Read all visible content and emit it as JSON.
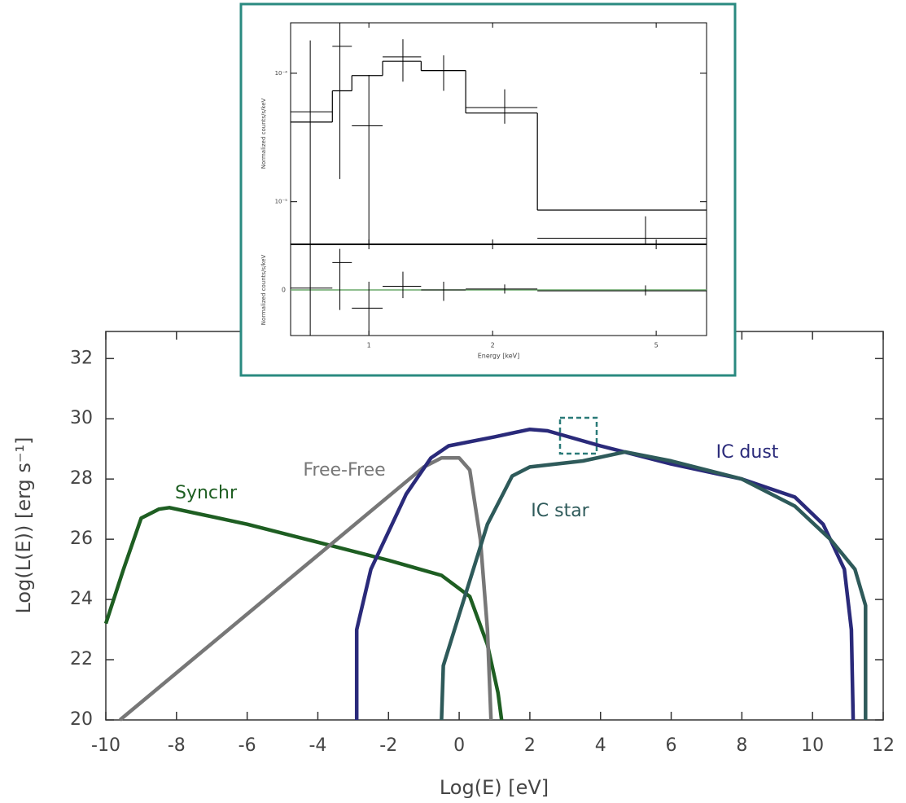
{
  "chart_data": [
    {
      "type": "line",
      "xlabel": "Log(E) [eV]",
      "ylabel": "Log(L(E)) [erg s⁻¹]",
      "xlim": [
        -10,
        12
      ],
      "xticks": [
        -10,
        -8,
        -6,
        -4,
        -2,
        0,
        2,
        4,
        6,
        8,
        10,
        12
      ],
      "ylim": [
        20,
        32.9
      ],
      "yticks": [
        20,
        22,
        24,
        26,
        28,
        30,
        32
      ],
      "series": [
        {
          "name": "Synchr",
          "color": "#1e5e22",
          "x": [
            -10,
            -9.5,
            -9,
            -8.5,
            -8.2,
            -6,
            -4,
            -2,
            -0.5,
            0.3,
            0.8,
            1.1,
            1.2
          ],
          "values": [
            23.2,
            25,
            26.7,
            27,
            27.05,
            26.5,
            25.9,
            25.3,
            24.8,
            24.1,
            22.5,
            20.9,
            20
          ]
        },
        {
          "name": "Free-Free",
          "color": "#777777",
          "x": [
            -9.6,
            -1,
            -0.5,
            0,
            0.3,
            0.6,
            0.8,
            0.9
          ],
          "values": [
            20,
            28.4,
            28.7,
            28.7,
            28.3,
            26,
            23,
            20
          ]
        },
        {
          "name": "IC dust",
          "color": "#2a2a7a",
          "x": [
            -2.9,
            -2.9,
            -2.5,
            -1.5,
            -0.8,
            -0.3,
            1,
            2,
            2.5,
            4,
            6,
            8,
            9.5,
            10.3,
            10.9,
            11.1,
            11.15
          ],
          "values": [
            20,
            23,
            25,
            27.5,
            28.7,
            29.1,
            29.4,
            29.65,
            29.6,
            29.1,
            28.5,
            28,
            27.4,
            26.5,
            25,
            23,
            20
          ]
        },
        {
          "name": "IC star",
          "color": "#2e5a5a",
          "x": [
            -0.5,
            -0.45,
            0,
            0.8,
            1.5,
            2,
            3.5,
            4.7,
            6,
            8,
            9.5,
            10.5,
            11.2,
            11.5,
            11.5
          ],
          "values": [
            20,
            21.8,
            23.5,
            26.5,
            28.1,
            28.4,
            28.6,
            28.9,
            28.6,
            28,
            27.1,
            26,
            25,
            23.8,
            20
          ]
        }
      ]
    },
    {
      "type": "spectrum",
      "xlabel": "Energy [keV]",
      "ylabel": "Normalized counts/s/keV",
      "residual_ylabel": "Normalized counts/s/keV",
      "log_x": true,
      "log_y": true,
      "xlim": [
        0.645,
        6.63
      ],
      "xticks": [
        1,
        2,
        5
      ],
      "ylim": [
        4.66e-06,
        0.000247
      ],
      "yticks": [
        {
          "value": 0.0001,
          "label": "10⁻⁴"
        },
        {
          "value": 1e-05,
          "label": "10⁻⁵"
        }
      ],
      "bins": [
        0.645,
        0.815,
        0.909,
        1.08,
        1.34,
        1.72,
        2.57,
        6.63
      ],
      "model": [
        4.17e-05,
        7.3e-05,
        9.6e-05,
        0.000124,
        0.000105,
        4.9e-05,
        8.6e-06
      ],
      "x": [
        0.72,
        0.85,
        1.0,
        1.21,
        1.52,
        2.14,
        4.71
      ],
      "values": [
        5e-05,
        0.000162,
        3.9e-05,
        0.000134,
        0.000105,
        5.4e-05,
        5.2e-06
      ],
      "y_low": [
        4.7e-06,
        1.5e-05,
        4.7e-06,
        8.6e-05,
        7.3e-05,
        4.05e-05,
        4.7e-06
      ],
      "y_high": [
        0.00018,
        0.000247,
        9.7e-05,
        0.000184,
        0.000138,
        7.5e-05,
        7.7e-06
      ],
      "residual_ylim": [
        -5,
        5
      ],
      "residual_yticks": [
        0
      ],
      "residuals": [
        0.2,
        3,
        -2,
        0.4,
        0,
        0.1,
        -0.1
      ],
      "residual_low": [
        -5,
        -2.2,
        -4.9,
        -0.9,
        -1.2,
        -0.4,
        -0.6
      ],
      "residual_high": [
        5,
        4.5,
        0.9,
        2,
        0.9,
        0.6,
        0.5
      ],
      "model_color": "#000000",
      "residual_model_color": "#6aa86a",
      "frame_color": "#2a8a80"
    }
  ]
}
